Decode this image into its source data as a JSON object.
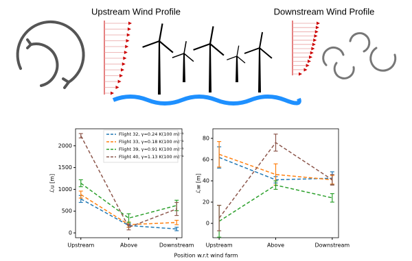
{
  "figure": {
    "upstream_label": "Upstream Wind Profile",
    "downstream_label": "Downstream Wind Profile",
    "xlabel": "Position w.r.t wind farm"
  },
  "chart_data": [
    {
      "type": "line",
      "categories": [
        "Upstream",
        "Above",
        "Downstream"
      ],
      "ylabel": "ℒu [m]",
      "ylim": [
        -110,
        2390
      ],
      "yticks": [
        0,
        500,
        1000,
        1500,
        2000
      ],
      "legend": "upper right",
      "series": [
        {
          "name": "Flight 32, γ=0.24 K(100 m)⁻¹",
          "color": "#1f77b4",
          "values": [
            780,
            170,
            90
          ],
          "errors": [
            80,
            40,
            40
          ]
        },
        {
          "name": "Flight 33, γ=0.18 K(100 m)⁻¹",
          "color": "#ff7f0e",
          "values": [
            880,
            190,
            240
          ],
          "errors": [
            80,
            60,
            50
          ]
        },
        {
          "name": "Flight 39, γ=0.91 K(100 m)⁻¹",
          "color": "#2ca02c",
          "values": [
            1140,
            340,
            630
          ],
          "errors": [
            80,
            100,
            120
          ]
        },
        {
          "name": "Flight 40, γ=1.13 K(100 m)⁻¹",
          "color": "#8c564b",
          "values": [
            2230,
            130,
            550
          ],
          "errors": [
            50,
            60,
            150
          ]
        }
      ]
    },
    {
      "type": "line",
      "categories": [
        "Upstream",
        "Above",
        "Downstream"
      ],
      "ylabel": "ℒw [m]",
      "ylim": [
        -13.5,
        89
      ],
      "yticks": [
        0,
        20,
        40,
        60,
        80
      ],
      "series": [
        {
          "color": "#1f77b4",
          "values": [
            62,
            41,
            42.5
          ],
          "errors": [
            10,
            3,
            6
          ]
        },
        {
          "color": "#ff7f0e",
          "values": [
            65,
            46,
            41
          ],
          "errors": [
            12,
            10,
            4
          ]
        },
        {
          "color": "#2ca02c",
          "values": [
            2,
            36,
            24
          ],
          "errors": [
            15,
            4,
            4
          ]
        },
        {
          "color": "#8c564b",
          "values": [
            5,
            76,
            41
          ],
          "errors": [
            12,
            8,
            5
          ]
        }
      ]
    }
  ]
}
